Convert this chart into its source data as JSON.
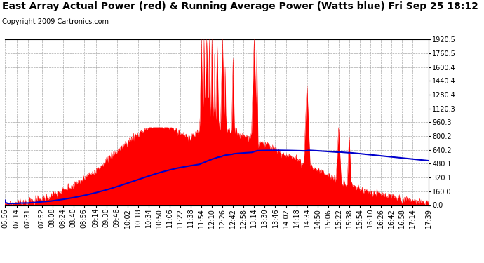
{
  "title": "East Array Actual Power (red) & Running Average Power (Watts blue) Fri Sep 25 18:12",
  "copyright": "Copyright 2009 Cartronics.com",
  "y_ticks": [
    0.0,
    160.0,
    320.1,
    480.1,
    640.2,
    800.2,
    960.3,
    1120.3,
    1280.4,
    1440.4,
    1600.4,
    1760.5,
    1920.5
  ],
  "y_tick_labels": [
    "0.0",
    "160.0",
    "320.1",
    "480.1",
    "640.2",
    "800.2",
    "960.3",
    "1120.3",
    "1280.4",
    "1440.4",
    "1600.4",
    "1760.5",
    "1920.5"
  ],
  "ymin": 0.0,
  "ymax": 1920.5,
  "x_labels": [
    "06:56",
    "07:14",
    "07:31",
    "07:52",
    "08:08",
    "08:24",
    "08:40",
    "08:56",
    "09:14",
    "09:30",
    "09:46",
    "10:02",
    "10:18",
    "10:34",
    "10:50",
    "11:06",
    "11:22",
    "11:38",
    "11:54",
    "12:10",
    "12:26",
    "12:42",
    "12:58",
    "13:14",
    "13:30",
    "13:46",
    "14:02",
    "14:18",
    "14:34",
    "14:50",
    "15:06",
    "15:22",
    "15:38",
    "15:54",
    "16:10",
    "16:26",
    "16:42",
    "16:58",
    "17:14",
    "17:39"
  ],
  "actual_color": "#FF0000",
  "average_color": "#0000CC",
  "background_color": "#FFFFFF",
  "grid_color": "#AAAAAA",
  "title_fontsize": 10,
  "copyright_fontsize": 7,
  "tick_fontsize": 7
}
